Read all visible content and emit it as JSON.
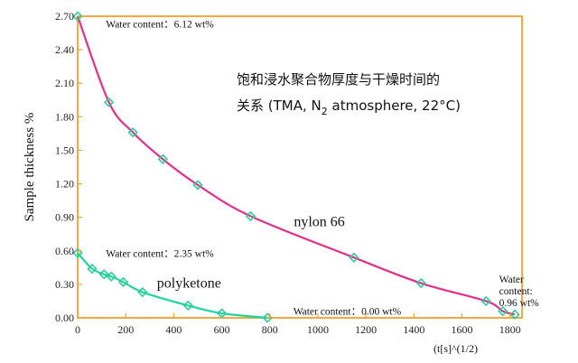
{
  "chart_data": {
    "type": "scatter",
    "title_lines": [
      "饱和浸水聚合物厚度与干燥时间的",
      "关系 (TMA, N",
      "2",
      " atmosphere, 22°C)"
    ],
    "ylabel": "Sample thickness %",
    "xlabel": "(t[s]^(1/2)",
    "xlim": [
      0,
      1850
    ],
    "ylim": [
      0,
      2.7
    ],
    "xticks": [
      0,
      200,
      400,
      600,
      800,
      1000,
      1200,
      1400,
      1600,
      1800
    ],
    "yticks": [
      0.0,
      0.3,
      0.6,
      0.9,
      1.2,
      1.5,
      1.8,
      2.1,
      2.4,
      2.7
    ],
    "ytick_labels": [
      "0.00",
      "0.30",
      "0.60",
      "0.90",
      "1.20",
      "1.50",
      "1.80",
      "2.10",
      "2.40",
      "2.70"
    ],
    "grid": false,
    "frame_color": "#f0a030",
    "series": [
      {
        "name": "nylon 66",
        "color": "#e0308a",
        "marker_color": "#2ecc9a",
        "x": [
          0,
          130,
          230,
          355,
          500,
          720,
          1150,
          1430,
          1700,
          1770,
          1820
        ],
        "y": [
          2.7,
          1.93,
          1.66,
          1.42,
          1.19,
          0.91,
          0.54,
          0.31,
          0.15,
          0.06,
          0.03
        ]
      },
      {
        "name": "polyketone",
        "color": "#20d4a0",
        "marker_color": "#2ecc9a",
        "x": [
          0,
          60,
          110,
          140,
          190,
          270,
          460,
          600,
          790
        ],
        "y": [
          0.58,
          0.44,
          0.39,
          0.37,
          0.32,
          0.23,
          0.11,
          0.04,
          0.0
        ]
      }
    ],
    "annotations": [
      {
        "text": "Water content：6.12  wt%",
        "x": 80,
        "y": 2.63
      },
      {
        "text": "Water content：2.35  wt%",
        "x": 80,
        "y": 0.58
      },
      {
        "text": "Water content：0.00  wt%",
        "x": 860,
        "y": 0.06
      },
      {
        "text_lines": [
          "Water",
          "content:",
          "0.96  wt%"
        ],
        "x": 1830,
        "y": 0.3
      }
    ]
  }
}
